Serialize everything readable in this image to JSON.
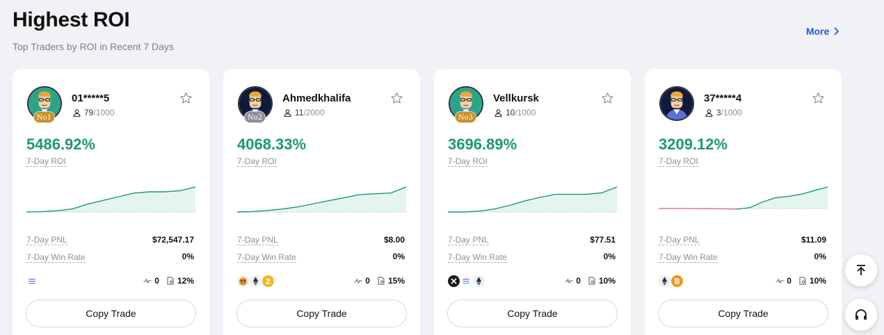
{
  "header": {
    "title": "Highest ROI",
    "subtitle": "Top Traders by ROI in Recent 7 Days",
    "more_label": "More"
  },
  "labels": {
    "roi": "7-Day ROI",
    "pnl": "7-Day PNL",
    "win_rate": "7-Day Win Rate",
    "copy_button": "Copy Trade"
  },
  "traders": [
    {
      "name": "01*****5",
      "rank": "No1",
      "rank_color": "#c9902b",
      "followers": "79",
      "max_followers": "/1000",
      "roi": "5486.92%",
      "pnl": "$72,547.17",
      "win_rate": "0%",
      "stat1": "0",
      "stat2": "12%",
      "coins": [
        "solana-coin-icon"
      ],
      "avatar_bg": "#2aa58a",
      "roi_trend": [
        0,
        0.5,
        2,
        5,
        13,
        19,
        25,
        31,
        33,
        33,
        35,
        41
      ],
      "trend_negative_until": null
    },
    {
      "name": "Ahmedkhalifa",
      "rank": "No2",
      "rank_color": "#8e9096",
      "followers": "11",
      "max_followers": "/2000",
      "roi": "4068.33%",
      "pnl": "$8.00",
      "win_rate": "0%",
      "stat1": "0",
      "stat2": "15%",
      "coins": [
        "tiger-coin-icon",
        "ethereum-coin-icon",
        "zcash-coin-icon"
      ],
      "avatar_bg": "#0f1a3c",
      "roi_trend": [
        0,
        0.5,
        2,
        4,
        7,
        11,
        15,
        19,
        23,
        24,
        25,
        33
      ],
      "trend_negative_until": null
    },
    {
      "name": "Vellkursk",
      "rank": "No3",
      "rank_color": "#c9902b",
      "followers": "10",
      "max_followers": "/1000",
      "roi": "3696.89%",
      "pnl": "$77.51",
      "win_rate": "0%",
      "stat1": "0",
      "stat2": "10%",
      "coins": [
        "x-coin-icon",
        "solana-coin-icon",
        "ethereum-coin-icon"
      ],
      "avatar_bg": "#2aa58a",
      "roi_trend": [
        0,
        0,
        1,
        4,
        9,
        15,
        20,
        24,
        24,
        24,
        26,
        34
      ],
      "trend_negative_until": null
    },
    {
      "name": "37*****4",
      "rank": "",
      "rank_color": "#c9902b",
      "followers": "3",
      "max_followers": "/1000",
      "roi": "3209.12%",
      "pnl": "$11.09",
      "win_rate": "0%",
      "stat1": "0",
      "stat2": "10%",
      "coins": [
        "ethereum-coin-icon",
        "bitcoin-coin-icon"
      ],
      "avatar_bg": "#0f1a3c",
      "roi_trend": [
        5,
        5,
        5,
        4.8,
        4.6,
        4.5,
        4,
        6,
        14,
        20,
        22,
        25,
        30,
        35
      ],
      "trend_negative_until": 6
    }
  ],
  "colors": {
    "roi_green": "#1a9a6a",
    "spark_fill": "#e3f5ee",
    "spark_neg": "#e0727a",
    "link_blue": "#1e5bd6"
  }
}
